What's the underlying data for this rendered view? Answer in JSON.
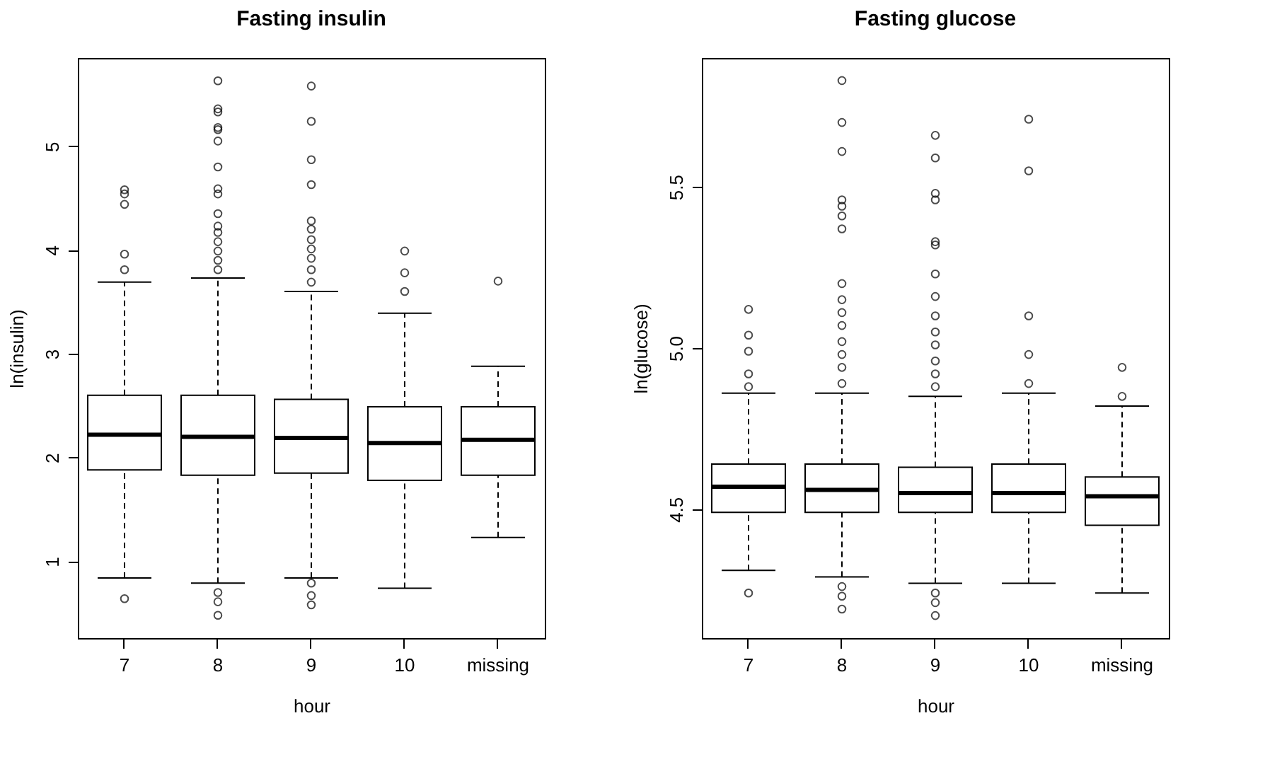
{
  "chart_data": [
    {
      "type": "box",
      "title": "Fasting insulin",
      "xlabel": "hour",
      "ylabel": "ln(insulin)",
      "categories": [
        "7",
        "8",
        "9",
        "10",
        "missing"
      ],
      "ylim": [
        0.26,
        5.85
      ],
      "yticks": [
        1,
        2,
        3,
        4,
        5
      ],
      "grid": false,
      "boxes": [
        {
          "low": 0.84,
          "q1": 1.88,
          "median": 2.22,
          "q3": 2.6,
          "high": 3.69,
          "outliers": [
            4.58,
            4.54,
            4.44,
            3.96,
            3.81,
            0.64
          ]
        },
        {
          "low": 0.79,
          "q1": 1.83,
          "median": 2.2,
          "q3": 2.6,
          "high": 3.73,
          "outliers": [
            5.63,
            5.36,
            5.33,
            5.18,
            5.16,
            5.05,
            4.8,
            4.59,
            4.54,
            4.35,
            4.23,
            4.17,
            4.08,
            3.99,
            3.9,
            3.81,
            0.7,
            0.61,
            0.48
          ]
        },
        {
          "low": 0.84,
          "q1": 1.85,
          "median": 2.19,
          "q3": 2.56,
          "high": 3.6,
          "outliers": [
            5.58,
            5.24,
            4.87,
            4.63,
            4.28,
            4.2,
            4.1,
            4.01,
            3.92,
            3.81,
            3.69,
            0.79,
            0.67,
            0.58
          ]
        },
        {
          "low": 0.74,
          "q1": 1.78,
          "median": 2.14,
          "q3": 2.49,
          "high": 3.39,
          "outliers": [
            3.99,
            3.78,
            3.6
          ]
        },
        {
          "low": 1.23,
          "q1": 1.83,
          "median": 2.17,
          "q3": 2.49,
          "high": 2.88,
          "outliers": [
            3.7
          ]
        }
      ]
    },
    {
      "type": "box",
      "title": "Fasting glucose",
      "xlabel": "hour",
      "ylabel": "ln(glucose)",
      "categories": [
        "7",
        "8",
        "9",
        "10",
        "missing"
      ],
      "ylim": [
        4.1,
        5.9
      ],
      "yticks": [
        4.5,
        {
          "value": 5,
          "label": "5.0"
        },
        5.5
      ],
      "grid": false,
      "boxes": [
        {
          "low": 4.31,
          "q1": 4.49,
          "median": 4.57,
          "q3": 4.64,
          "high": 4.86,
          "outliers": [
            5.12,
            5.04,
            4.99,
            4.92,
            4.88,
            4.24
          ]
        },
        {
          "low": 4.29,
          "q1": 4.49,
          "median": 4.56,
          "q3": 4.64,
          "high": 4.86,
          "outliers": [
            5.83,
            5.7,
            5.61,
            5.46,
            5.44,
            5.41,
            5.37,
            5.2,
            5.15,
            5.11,
            5.07,
            5.02,
            4.98,
            4.94,
            4.89,
            4.26,
            4.23,
            4.19
          ]
        },
        {
          "low": 4.27,
          "q1": 4.49,
          "median": 4.55,
          "q3": 4.63,
          "high": 4.85,
          "outliers": [
            5.66,
            5.59,
            5.48,
            5.46,
            5.33,
            5.32,
            5.23,
            5.16,
            5.1,
            5.05,
            5.01,
            4.96,
            4.92,
            4.88,
            4.24,
            4.21,
            4.17
          ]
        },
        {
          "low": 4.27,
          "q1": 4.49,
          "median": 4.55,
          "q3": 4.64,
          "high": 4.86,
          "outliers": [
            5.71,
            5.55,
            5.1,
            4.98,
            4.89
          ]
        },
        {
          "low": 4.24,
          "q1": 4.45,
          "median": 4.54,
          "q3": 4.6,
          "high": 4.82,
          "outliers": [
            4.94,
            4.85
          ]
        }
      ]
    }
  ]
}
